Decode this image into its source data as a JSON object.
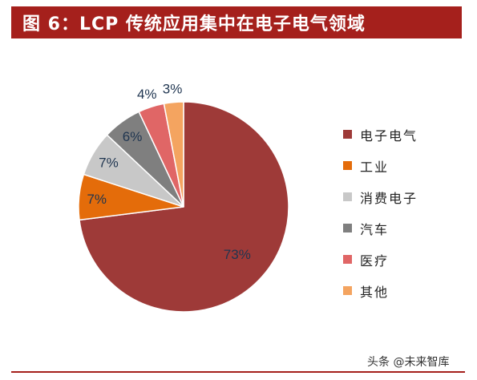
{
  "title": "图 6：LCP 传统应用集中在电子电气领域",
  "watermark": "头条 @未来智库",
  "chart_data": {
    "type": "pie",
    "title": "图 6：LCP 传统应用集中在电子电气领域",
    "categories": [
      "电子电气",
      "工业",
      "消费电子",
      "汽车",
      "医疗",
      "其他"
    ],
    "values": [
      73,
      7,
      7,
      6,
      4,
      3
    ],
    "labels": [
      "73%",
      "7%",
      "7%",
      "6%",
      "4%",
      "3%"
    ],
    "colors": [
      "#9e3a38",
      "#e46c0a",
      "#c8c8c8",
      "#7f7f7f",
      "#e06666",
      "#f4a460"
    ],
    "legend_position": "right"
  }
}
